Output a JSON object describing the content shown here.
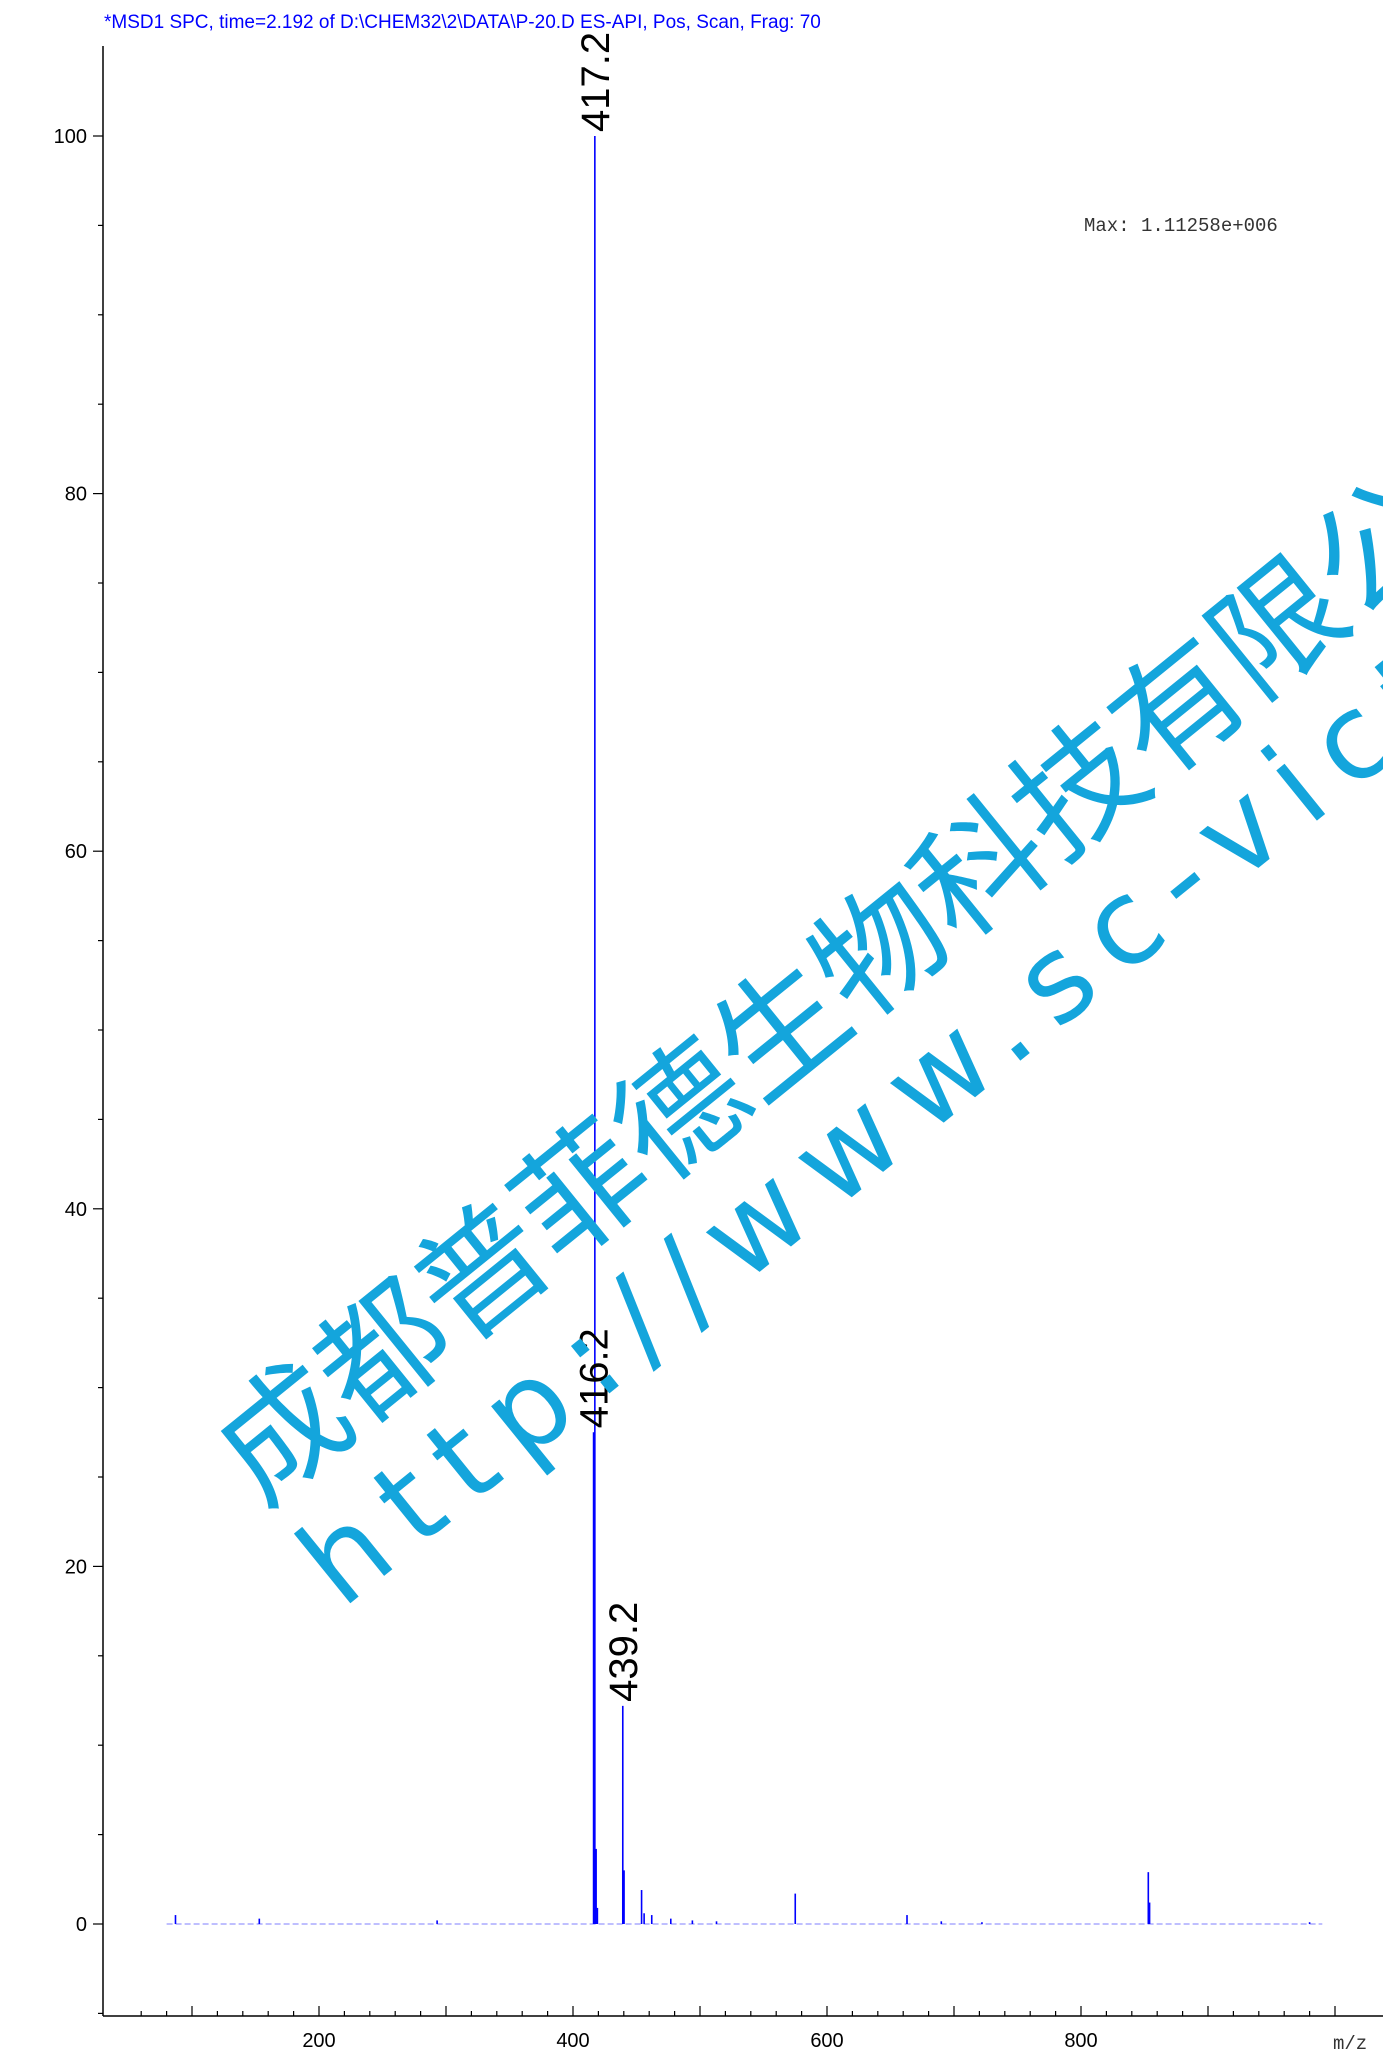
{
  "header": {
    "title": "*MSD1 SPC, time=2.192 of D:\\CHEM32\\2\\DATA\\P-20.D    ES-API, Pos, Scan, Frag: 70"
  },
  "annotation": {
    "max_text": "Max: 1.11258e+006"
  },
  "watermark": {
    "company": "成都普菲德生物科技有限公司",
    "url": "http://www.sc-victory.com",
    "color": "#14a5dc"
  },
  "colors": {
    "trace": "#0000ff",
    "title": "#0000ff",
    "axis": "#000000"
  },
  "chart_data": {
    "type": "bar",
    "xlabel": "m/z",
    "ylabel": "",
    "xlim": [
      40,
      1000
    ],
    "ylim": [
      -5,
      105
    ],
    "x_ticks": [
      200,
      400,
      600,
      800
    ],
    "y_ticks": [
      0,
      20,
      40,
      60,
      80,
      100
    ],
    "peaks": [
      {
        "mz": 417.2,
        "value": 100,
        "label": "417.2"
      },
      {
        "mz": 416.2,
        "value": 27.5,
        "label": "416.2"
      },
      {
        "mz": 439.2,
        "value": 12.2,
        "label": "439.2"
      },
      {
        "mz": 418.2,
        "value": 4.2,
        "label": ""
      },
      {
        "mz": 440.2,
        "value": 3.0,
        "label": ""
      },
      {
        "mz": 454.0,
        "value": 1.9,
        "label": ""
      },
      {
        "mz": 575.0,
        "value": 1.7,
        "label": ""
      },
      {
        "mz": 853.0,
        "value": 2.9,
        "label": ""
      },
      {
        "mz": 854.0,
        "value": 1.2,
        "label": ""
      },
      {
        "mz": 419.2,
        "value": 0.9,
        "label": ""
      },
      {
        "mz": 456.0,
        "value": 0.6,
        "label": ""
      },
      {
        "mz": 462.0,
        "value": 0.5,
        "label": ""
      },
      {
        "mz": 663.0,
        "value": 0.5,
        "label": ""
      },
      {
        "mz": 87.0,
        "value": 0.5,
        "label": ""
      },
      {
        "mz": 153.0,
        "value": 0.3,
        "label": ""
      },
      {
        "mz": 293.0,
        "value": 0.2,
        "label": ""
      },
      {
        "mz": 477.0,
        "value": 0.3,
        "label": ""
      },
      {
        "mz": 494.0,
        "value": 0.2,
        "label": ""
      },
      {
        "mz": 513.0,
        "value": 0.15,
        "label": ""
      },
      {
        "mz": 690.0,
        "value": 0.15,
        "label": ""
      },
      {
        "mz": 722.0,
        "value": 0.1,
        "label": ""
      },
      {
        "mz": 980.0,
        "value": 0.1,
        "label": ""
      }
    ]
  }
}
